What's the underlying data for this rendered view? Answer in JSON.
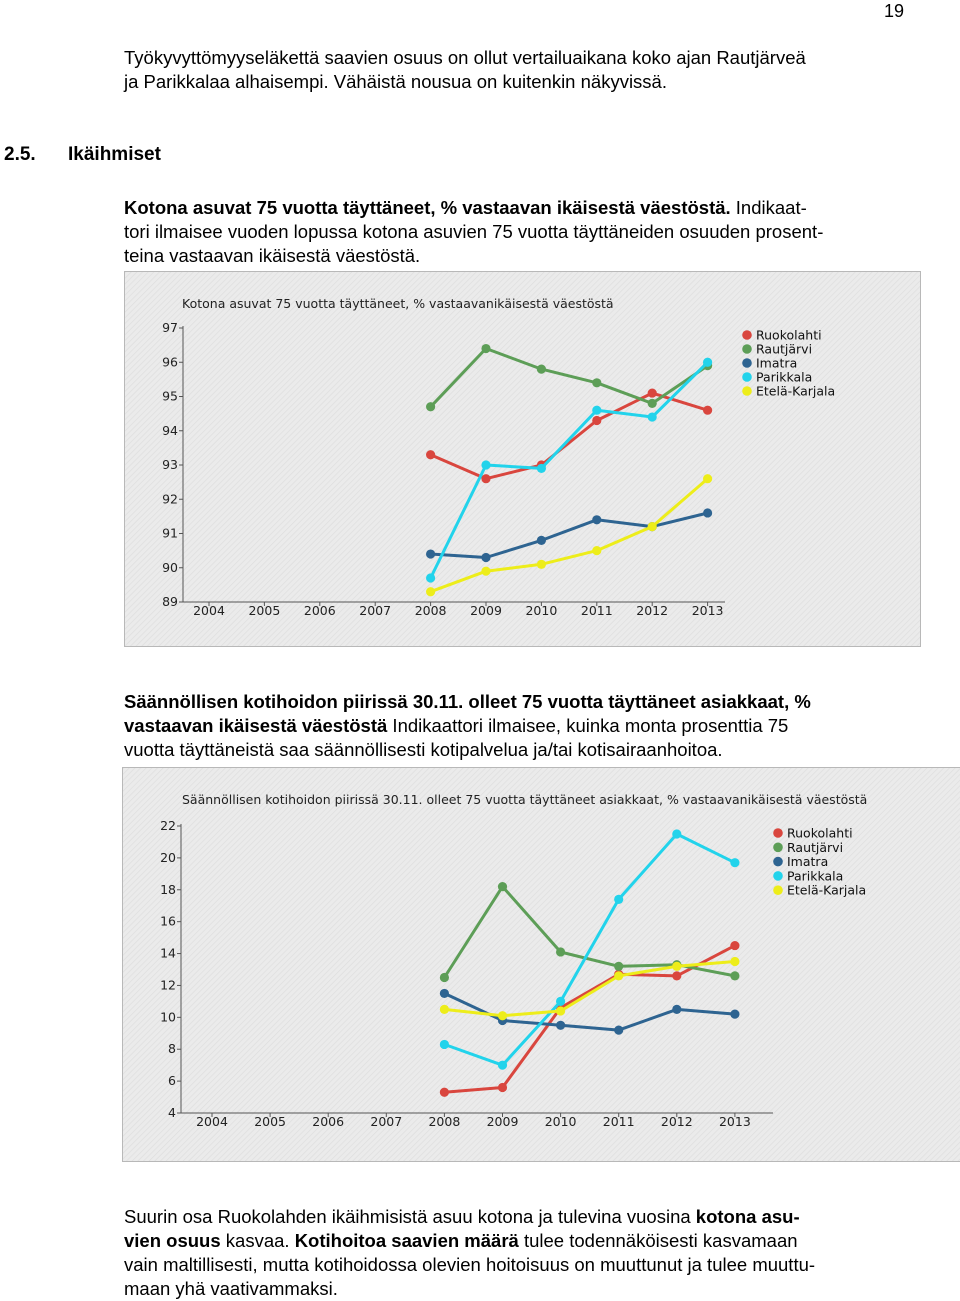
{
  "page_number": "19",
  "intro_paragraph": [
    "Työkyvyttömyyseläkettä saavien osuus on ollut vertailuaikana koko ajan Rautjärveä",
    "ja Parikkalaa alhaisempi. Vähäistä nousua on kuitenkin näkyvissä."
  ],
  "section": {
    "number": "2.5.",
    "title": "Ikäihmiset"
  },
  "indicator1": {
    "title": "Kotona asuvat 75 vuotta täyttäneet, % vastaavan ikäisestä väestöstä.",
    "line1_rest": " Indikaat-",
    "lines": [
      "tori ilmaisee vuoden lopussa kotona asuvien 75 vuotta täyttäneiden osuuden prosent-",
      "teina vastaavan ikäisestä väestöstä."
    ]
  },
  "indicator2": {
    "title_line1": "Säännöllisen kotihoidon piirissä 30.11. olleet 75 vuotta täyttäneet asiakkaat, %",
    "title_line2": "vastaavan ikäisestä väestöstä",
    "line2_rest": " Indikaattori ilmaisee, kuinka monta prosenttia 75",
    "line3": "vuotta täyttäneistä saa säännöllisesti kotipalvelua ja/tai kotisairaanhoitoa."
  },
  "final_paragraph": {
    "l1_a": "Suurin osa Ruokolahden ikäihmisistä asuu kotona ja tulevina vuosina ",
    "l1_b": "kotona asu-",
    "l2_a": "vien osuus",
    "l2_b": " kasvaa. ",
    "l2_c": "Kotihoitoa saavien määrä",
    "l2_d": " tulee todennäköisesti kasvamaan",
    "l3": "vain maltillisesti, mutta kotihoidossa olevien hoitoisuus on muuttunut ja tulee muuttu-",
    "l4": "maan yhä vaativammaksi."
  },
  "chart_data": [
    {
      "type": "line",
      "title": "Kotona asuvat 75 vuotta täyttäneet, % vastaavanikäisestä väestöstä",
      "categories": [
        "2004",
        "2005",
        "2006",
        "2007",
        "2008",
        "2009",
        "2010",
        "2011",
        "2012",
        "2013"
      ],
      "yticks": [
        89,
        90,
        91,
        92,
        93,
        94,
        95,
        96,
        97
      ],
      "ylim": [
        89,
        97
      ],
      "grid": false,
      "legend_position": "top-right",
      "series": [
        {
          "name": "Ruokolahti",
          "color": "#d9463e",
          "values": [
            null,
            null,
            null,
            null,
            93.3,
            92.6,
            93.0,
            94.3,
            95.1,
            94.6
          ]
        },
        {
          "name": "Rautjärvi",
          "color": "#5d9e57",
          "values": [
            null,
            null,
            null,
            null,
            94.7,
            96.4,
            95.8,
            95.4,
            94.8,
            95.9
          ]
        },
        {
          "name": "Imatra",
          "color": "#2e6491",
          "values": [
            null,
            null,
            null,
            null,
            90.4,
            90.3,
            90.8,
            91.4,
            91.2,
            91.6
          ]
        },
        {
          "name": "Parikkala",
          "color": "#22d3eb",
          "values": [
            null,
            null,
            null,
            null,
            89.7,
            93.0,
            92.9,
            94.6,
            94.4,
            96.0
          ]
        },
        {
          "name": "Etelä-Karjala",
          "color": "#eded1a",
          "values": [
            null,
            null,
            null,
            null,
            89.3,
            89.9,
            90.1,
            90.5,
            91.2,
            92.6
          ]
        }
      ]
    },
    {
      "type": "line",
      "title": "Säännöllisen kotihoidon piirissä 30.11. olleet 75 vuotta täyttäneet asiakkaat, % vastaavanikäisestä väestöstä",
      "categories": [
        "2004",
        "2005",
        "2006",
        "2007",
        "2008",
        "2009",
        "2010",
        "2011",
        "2012",
        "2013"
      ],
      "yticks": [
        4,
        6,
        8,
        10,
        12,
        14,
        16,
        18,
        20,
        22
      ],
      "ylim": [
        4,
        22
      ],
      "grid": false,
      "legend_position": "top-right",
      "series": [
        {
          "name": "Ruokolahti",
          "color": "#d9463e",
          "values": [
            null,
            null,
            null,
            null,
            5.3,
            5.6,
            10.6,
            12.7,
            12.6,
            14.5
          ]
        },
        {
          "name": "Rautjärvi",
          "color": "#5d9e57",
          "values": [
            null,
            null,
            null,
            null,
            12.5,
            18.2,
            14.1,
            13.2,
            13.3,
            12.6
          ]
        },
        {
          "name": "Imatra",
          "color": "#2e6491",
          "values": [
            null,
            null,
            null,
            null,
            11.5,
            9.8,
            9.5,
            9.2,
            10.5,
            10.2
          ]
        },
        {
          "name": "Parikkala",
          "color": "#22d3eb",
          "values": [
            null,
            null,
            null,
            null,
            8.3,
            7.0,
            11.0,
            17.4,
            21.5,
            19.7
          ]
        },
        {
          "name": "Etelä-Karjala",
          "color": "#eded1a",
          "values": [
            null,
            null,
            null,
            null,
            10.5,
            10.1,
            10.4,
            12.6,
            13.2,
            13.5
          ]
        }
      ]
    }
  ]
}
